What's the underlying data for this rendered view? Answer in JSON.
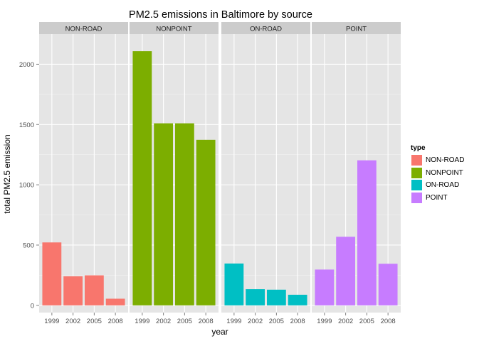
{
  "chart_data": {
    "type": "bar",
    "title": "PM2.5 emissions in Baltimore by source",
    "xlabel": "year",
    "ylabel": "total PM2.5 emission",
    "ylim": [
      -60,
      2250
    ],
    "yticks": [
      0,
      500,
      1000,
      1500,
      2000
    ],
    "categories": [
      "1999",
      "2002",
      "2005",
      "2008"
    ],
    "legend_title": "type",
    "legend_position": "right",
    "grid": true,
    "facets": [
      {
        "label": "NON-ROAD",
        "color": "#F8766D",
        "values": [
          522,
          241,
          249,
          55
        ]
      },
      {
        "label": "NONPOINT",
        "color": "#7CAE00",
        "values": [
          2108,
          1510,
          1510,
          1373
        ]
      },
      {
        "label": "ON-ROAD",
        "color": "#00BFC4",
        "values": [
          347,
          134,
          130,
          88
        ]
      },
      {
        "label": "POINT",
        "color": "#C77CFF",
        "values": [
          297,
          569,
          1203,
          345
        ]
      }
    ]
  }
}
